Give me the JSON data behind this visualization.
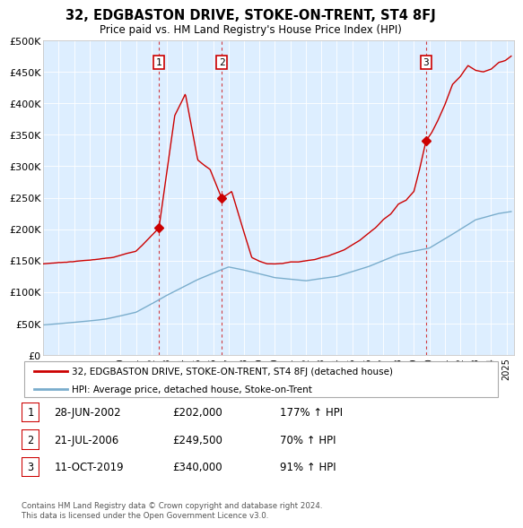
{
  "title": "32, EDGBASTON DRIVE, STOKE-ON-TRENT, ST4 8FJ",
  "subtitle": "Price paid vs. HM Land Registry's House Price Index (HPI)",
  "ylabel_ticks": [
    "£0",
    "£50K",
    "£100K",
    "£150K",
    "£200K",
    "£250K",
    "£300K",
    "£350K",
    "£400K",
    "£450K",
    "£500K"
  ],
  "ytick_values": [
    0,
    50000,
    100000,
    150000,
    200000,
    250000,
    300000,
    350000,
    400000,
    450000,
    500000
  ],
  "ylim": [
    0,
    500000
  ],
  "xlim_start": 1995.0,
  "xlim_end": 2025.5,
  "sales": [
    {
      "date_num": 2002.49,
      "price": 202000,
      "label": "1"
    },
    {
      "date_num": 2006.55,
      "price": 249500,
      "label": "2"
    },
    {
      "date_num": 2019.78,
      "price": 340000,
      "label": "3"
    }
  ],
  "sale_dates_text": [
    "28-JUN-2002",
    "21-JUL-2006",
    "11-OCT-2019"
  ],
  "sale_prices_text": [
    "£202,000",
    "£249,500",
    "£340,000"
  ],
  "sale_hpi_text": [
    "177% ↑ HPI",
    "70% ↑ HPI",
    "91% ↑ HPI"
  ],
  "red_color": "#cc0000",
  "blue_color": "#7aadcc",
  "background_color": "#ddeeff",
  "legend_label_red": "32, EDGBASTON DRIVE, STOKE-ON-TRENT, ST4 8FJ (detached house)",
  "legend_label_blue": "HPI: Average price, detached house, Stoke-on-Trent",
  "footnote": "Contains HM Land Registry data © Crown copyright and database right 2024.\nThis data is licensed under the Open Government Licence v3.0.",
  "x_years": [
    1995,
    1996,
    1997,
    1998,
    1999,
    2000,
    2001,
    2002,
    2003,
    2004,
    2005,
    2006,
    2007,
    2008,
    2009,
    2010,
    2011,
    2012,
    2013,
    2014,
    2015,
    2016,
    2017,
    2018,
    2019,
    2020,
    2021,
    2022,
    2023,
    2024,
    2025
  ]
}
